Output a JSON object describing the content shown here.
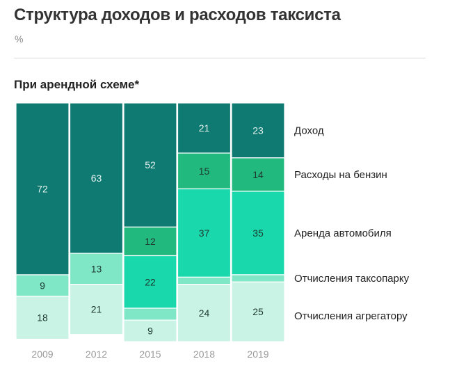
{
  "title": "Структура доходов и расходов таксиста",
  "unit": "%",
  "subtitle": "При арендной схеме*",
  "chart_data": {
    "type": "bar",
    "stacked": true,
    "orientation": "vertical",
    "categories": [
      "2009",
      "2012",
      "2015",
      "2018",
      "2019"
    ],
    "series": [
      {
        "name": "Доход",
        "values": [
          72,
          63,
          52,
          21,
          23
        ],
        "color": "#0e7a72",
        "label_color": "#e6f2f0"
      },
      {
        "name": "Расходы на бензин",
        "values": [
          0,
          0,
          12,
          15,
          14
        ],
        "color": "#22b97f",
        "label_color": "#1f3a30"
      },
      {
        "name": "Аренда автомобиля",
        "values": [
          0,
          0,
          22,
          37,
          35
        ],
        "color": "#19d8ac",
        "label_color": "#1f3a30"
      },
      {
        "name": "Отчисления таксопарку",
        "values": [
          9,
          13,
          5,
          3,
          3
        ],
        "color": "#7fe6c6",
        "label_color": "#1f3a30"
      },
      {
        "name": "Отчисления агрегатору",
        "values": [
          18,
          21,
          9,
          24,
          25
        ],
        "color": "#c8f3e5",
        "label_color": "#1f3a30"
      }
    ],
    "ylim": [
      0,
      100
    ],
    "grid": false,
    "legend": "right"
  }
}
